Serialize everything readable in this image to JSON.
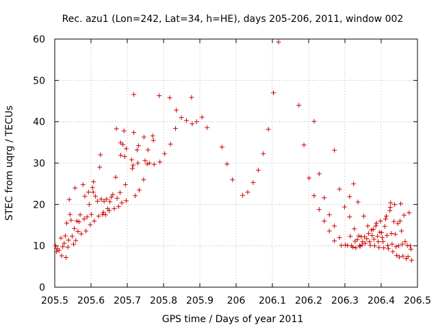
{
  "chart_data": {
    "type": "scatter",
    "title": "Rec. azu1 (Lon=242, Lat=34, h=HE), days 205-206, 2011, window 002",
    "xlabel": "GPS time / Days of year 2011",
    "ylabel": "STEC from uqrg / TECUs",
    "xlim": [
      205.5,
      206.5
    ],
    "ylim": [
      0,
      60
    ],
    "xticks": [
      205.5,
      205.6,
      205.7,
      205.8,
      205.9,
      206.0,
      206.1,
      206.2,
      206.3,
      206.4,
      206.5
    ],
    "xtick_labels": [
      "205.5",
      "205.6",
      "205.7",
      "205.8",
      "205.9",
      "206",
      "206.1",
      "206.2",
      "206.3",
      "206.4",
      "206.5"
    ],
    "yticks": [
      0,
      10,
      20,
      30,
      40,
      50,
      60
    ],
    "ytick_labels": [
      "0",
      "10",
      "20",
      "30",
      "40",
      "50",
      "60"
    ],
    "grid": true,
    "marker": "plus",
    "color": "#cc0000",
    "series": [
      {
        "name": "STEC",
        "points": [
          [
            205.503,
            10.0
          ],
          [
            205.505,
            8.6
          ],
          [
            205.507,
            9.3
          ],
          [
            205.512,
            8.9
          ],
          [
            205.517,
            11.9
          ],
          [
            205.519,
            7.6
          ],
          [
            205.522,
            9.8
          ],
          [
            205.526,
            10.6
          ],
          [
            205.529,
            12.4
          ],
          [
            205.531,
            7.2
          ],
          [
            205.533,
            15.5
          ],
          [
            205.536,
            9.7
          ],
          [
            205.538,
            11.4
          ],
          [
            205.54,
            21.2
          ],
          [
            205.542,
            17.6
          ],
          [
            205.545,
            16.2
          ],
          [
            205.548,
            12.3
          ],
          [
            205.552,
            10.4
          ],
          [
            205.554,
            14.2
          ],
          [
            205.556,
            24.0
          ],
          [
            205.558,
            11.3
          ],
          [
            205.561,
            16.0
          ],
          [
            205.564,
            13.5
          ],
          [
            205.567,
            15.8
          ],
          [
            205.57,
            17.5
          ],
          [
            205.573,
            12.9
          ],
          [
            205.578,
            24.8
          ],
          [
            205.581,
            16.5
          ],
          [
            205.583,
            22.0
          ],
          [
            205.586,
            13.6
          ],
          [
            205.589,
            17.0
          ],
          [
            205.593,
            23.0
          ],
          [
            205.595,
            20.0
          ],
          [
            205.598,
            15.1
          ],
          [
            205.601,
            17.6
          ],
          [
            205.604,
            24.1
          ],
          [
            205.606,
            23.0
          ],
          [
            205.607,
            25.5
          ],
          [
            205.609,
            16.0
          ],
          [
            205.612,
            22.0
          ],
          [
            205.618,
            20.8
          ],
          [
            205.621,
            17.2
          ],
          [
            205.624,
            29.0
          ],
          [
            205.626,
            32.0
          ],
          [
            205.628,
            21.3
          ],
          [
            205.632,
            17.6
          ],
          [
            205.634,
            18.1
          ],
          [
            205.636,
            20.8
          ],
          [
            205.64,
            17.5
          ],
          [
            205.643,
            21.3
          ],
          [
            205.646,
            19.0
          ],
          [
            205.65,
            18.5
          ],
          [
            205.652,
            20.7
          ],
          [
            205.656,
            21.8
          ],
          [
            205.66,
            22.4
          ],
          [
            205.664,
            19.0
          ],
          [
            205.668,
            26.6
          ],
          [
            205.67,
            38.3
          ],
          [
            205.672,
            21.5
          ],
          [
            205.676,
            19.5
          ],
          [
            205.68,
            22.9
          ],
          [
            205.682,
            31.9
          ],
          [
            205.682,
            34.9
          ],
          [
            205.685,
            20.4
          ],
          [
            205.688,
            34.5
          ],
          [
            205.691,
            37.8
          ],
          [
            205.693,
            31.6
          ],
          [
            205.695,
            24.8
          ],
          [
            205.697,
            33.5
          ],
          [
            205.697,
            20.9
          ],
          [
            205.712,
            30.8
          ],
          [
            205.714,
            28.7
          ],
          [
            205.716,
            29.5
          ],
          [
            205.718,
            46.6
          ],
          [
            205.718,
            37.4
          ],
          [
            205.722,
            22.1
          ],
          [
            205.727,
            33.2
          ],
          [
            205.729,
            30.0
          ],
          [
            205.731,
            34.2
          ],
          [
            205.733,
            23.5
          ],
          [
            205.745,
            26.0
          ],
          [
            205.746,
            36.3
          ],
          [
            205.749,
            30.6
          ],
          [
            205.755,
            29.8
          ],
          [
            205.757,
            33.2
          ],
          [
            205.761,
            30.0
          ],
          [
            205.77,
            36.6
          ],
          [
            205.772,
            35.5
          ],
          [
            205.774,
            29.7
          ],
          [
            205.788,
            46.3
          ],
          [
            205.79,
            30.3
          ],
          [
            205.803,
            32.3
          ],
          [
            205.817,
            45.8
          ],
          [
            205.819,
            34.6
          ],
          [
            205.833,
            38.4
          ],
          [
            205.835,
            42.8
          ],
          [
            205.849,
            41.0
          ],
          [
            205.863,
            40.3
          ],
          [
            205.877,
            45.9
          ],
          [
            205.879,
            39.5
          ],
          [
            205.891,
            40.0
          ],
          [
            205.906,
            41.1
          ],
          [
            205.92,
            38.6
          ],
          [
            205.961,
            33.9
          ],
          [
            205.975,
            29.8
          ],
          [
            205.99,
            26.0
          ],
          [
            206.018,
            22.2
          ],
          [
            206.032,
            23.0
          ],
          [
            206.047,
            25.3
          ],
          [
            206.061,
            28.3
          ],
          [
            206.075,
            32.3
          ],
          [
            206.089,
            38.2
          ],
          [
            206.103,
            47.0
          ],
          [
            206.117,
            59.3
          ],
          [
            206.173,
            44.0
          ],
          [
            206.187,
            34.4
          ],
          [
            206.201,
            26.4
          ],
          [
            206.215,
            40.1
          ],
          [
            206.215,
            22.1
          ],
          [
            206.229,
            27.4
          ],
          [
            206.229,
            18.8
          ],
          [
            206.243,
            21.6
          ],
          [
            206.243,
            16.0
          ],
          [
            206.257,
            17.5
          ],
          [
            206.257,
            13.6
          ],
          [
            206.271,
            33.1
          ],
          [
            206.271,
            14.8
          ],
          [
            206.271,
            11.2
          ],
          [
            206.285,
            23.7
          ],
          [
            206.285,
            12.0
          ],
          [
            206.29,
            10.1
          ],
          [
            206.299,
            19.4
          ],
          [
            206.301,
            10.2
          ],
          [
            206.307,
            10.1
          ],
          [
            206.313,
            21.9
          ],
          [
            206.313,
            17.0
          ],
          [
            206.315,
            12.3
          ],
          [
            206.318,
            10.0
          ],
          [
            206.322,
            9.7
          ],
          [
            206.324,
            25.0
          ],
          [
            206.326,
            14.1
          ],
          [
            206.328,
            11.1
          ],
          [
            206.33,
            9.5
          ],
          [
            206.334,
            11.5
          ],
          [
            206.336,
            20.6
          ],
          [
            206.338,
            12.4
          ],
          [
            206.34,
            10.0
          ],
          [
            206.342,
            9.9
          ],
          [
            206.345,
            12.2
          ],
          [
            206.347,
            10.2
          ],
          [
            206.349,
            11.0
          ],
          [
            206.352,
            17.2
          ],
          [
            206.354,
            12.2
          ],
          [
            206.356,
            10.6
          ],
          [
            206.36,
            11.7
          ],
          [
            206.363,
            14.8
          ],
          [
            206.365,
            13.0
          ],
          [
            206.368,
            11.0
          ],
          [
            206.37,
            10.1
          ],
          [
            206.373,
            13.8
          ],
          [
            206.375,
            12.5
          ],
          [
            206.378,
            14.0
          ],
          [
            206.38,
            11.6
          ],
          [
            206.382,
            10.0
          ],
          [
            206.385,
            14.8
          ],
          [
            206.387,
            15.5
          ],
          [
            206.39,
            12.3
          ],
          [
            206.392,
            11.0
          ],
          [
            206.394,
            9.6
          ],
          [
            206.396,
            13.3
          ],
          [
            206.398,
            16.0
          ],
          [
            206.401,
            13.2
          ],
          [
            206.403,
            12.0
          ],
          [
            206.405,
            11.0
          ],
          [
            206.407,
            9.5
          ],
          [
            206.41,
            14.7
          ],
          [
            206.412,
            16.5
          ],
          [
            206.414,
            17.2
          ],
          [
            206.416,
            12.5
          ],
          [
            206.418,
            10.1
          ],
          [
            206.42,
            9.3
          ],
          [
            206.424,
            18.5
          ],
          [
            206.425,
            19.3
          ],
          [
            206.426,
            20.4
          ],
          [
            206.428,
            13.0
          ],
          [
            206.43,
            10.4
          ],
          [
            206.432,
            8.6
          ],
          [
            206.435,
            15.9
          ],
          [
            206.437,
            20.0
          ],
          [
            206.439,
            12.8
          ],
          [
            206.441,
            9.8
          ],
          [
            206.443,
            7.7
          ],
          [
            206.446,
            15.4
          ],
          [
            206.448,
            10.0
          ],
          [
            206.45,
            7.3
          ],
          [
            206.452,
            16.0
          ],
          [
            206.454,
            20.2
          ],
          [
            206.456,
            13.6
          ],
          [
            206.458,
            10.4
          ],
          [
            206.46,
            7.5
          ],
          [
            206.463,
            17.4
          ],
          [
            206.466,
            11.0
          ],
          [
            206.469,
            6.9
          ],
          [
            206.472,
            10.1
          ],
          [
            206.474,
            7.4
          ],
          [
            206.477,
            18.0
          ],
          [
            206.48,
            10.0
          ],
          [
            206.482,
            9.2
          ],
          [
            206.484,
            6.5
          ]
        ]
      }
    ]
  }
}
